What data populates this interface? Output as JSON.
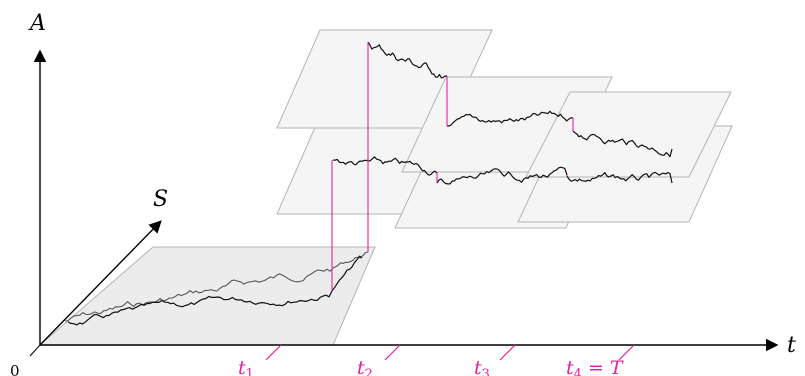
{
  "axes": {
    "vertical": "A",
    "depth": "S",
    "horizontal": "t",
    "origin": "0"
  },
  "ticks": [
    "t",
    "t",
    "t",
    "t"
  ],
  "tick_subscripts": [
    "1",
    "2",
    "3",
    "4"
  ],
  "tick_suffix": [
    "",
    "",
    "",
    " = T"
  ],
  "colors": {
    "axis": "#000000",
    "path": "#111111",
    "jump": "#e0249a",
    "tick": "#e0249a",
    "plane_stroke": "#b4b4b4"
  }
}
